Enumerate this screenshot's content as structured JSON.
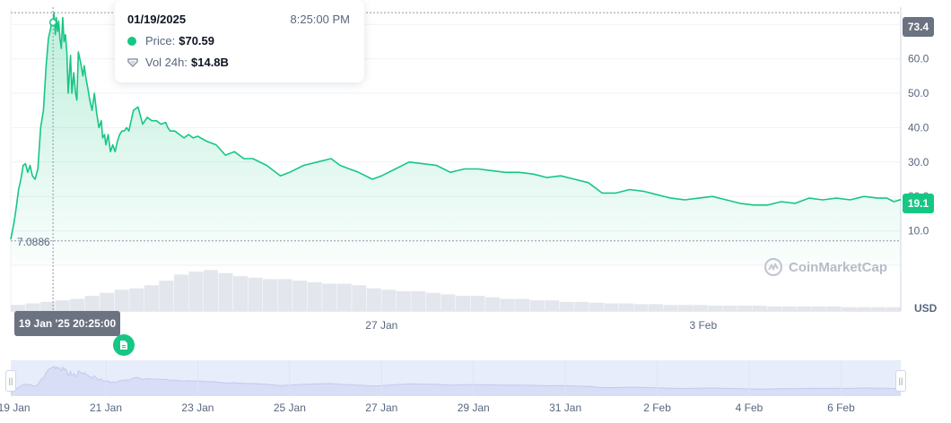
{
  "chart_data": {
    "type": "area",
    "ylim": [
      0,
      75
    ],
    "y_ticks": [
      "10.0",
      "20.0",
      "30.0",
      "40.0",
      "50.0",
      "60.0",
      "70.0"
    ],
    "x_ticks": [
      "27 Jan",
      "3 Feb"
    ],
    "x_ticks_days": [
      27,
      34
    ],
    "x_range_days": [
      18.93,
      38.3
    ],
    "currency": "USD",
    "high_value": "73.4",
    "last_value": "19.1",
    "low_value": "7.0886",
    "high_line_value": 73.4,
    "low_line_value": 7.0886,
    "crosshair_day": 19.85,
    "crosshair_value": 70.59,
    "series": [
      {
        "values_x_days": [
          18.93,
          18.98,
          19.02,
          19.06,
          19.1,
          19.15,
          19.2,
          19.25,
          19.3,
          19.35,
          19.4,
          19.46,
          19.52,
          19.58,
          19.64,
          19.7,
          19.75,
          19.8,
          19.82,
          19.85,
          19.87,
          19.9,
          19.92,
          19.95,
          19.97,
          20.0,
          20.03,
          20.06,
          20.09,
          20.12,
          20.15,
          20.18,
          20.2,
          20.23,
          20.26,
          20.3,
          20.34,
          20.37,
          20.4,
          20.45,
          20.5,
          20.53,
          20.57,
          20.6,
          20.65,
          20.7,
          20.75,
          20.8,
          20.85,
          20.9,
          20.93,
          20.97,
          21.0,
          21.05,
          21.1,
          21.15,
          21.2,
          21.25,
          21.3,
          21.35,
          21.4,
          21.45,
          21.5,
          21.6,
          21.7,
          21.8,
          21.9,
          22.0,
          22.1,
          22.2,
          22.3,
          22.35,
          22.4,
          22.5,
          22.6,
          22.7,
          22.8,
          22.9,
          23.0,
          23.2,
          23.4,
          23.6,
          23.8,
          24.0,
          24.2,
          24.5,
          24.8,
          25.0,
          25.3,
          25.6,
          25.9,
          26.1,
          26.3,
          26.5,
          26.8,
          27.0,
          27.3,
          27.6,
          27.9,
          28.2,
          28.5,
          28.8,
          29.1,
          29.4,
          29.7,
          30.0,
          30.3,
          30.6,
          30.9,
          31.2,
          31.5,
          31.8,
          32.1,
          32.4,
          32.7,
          33.0,
          33.3,
          33.6,
          33.9,
          34.2,
          34.5,
          34.8,
          35.1,
          35.4,
          35.7,
          36.0,
          36.3,
          36.6,
          36.9,
          37.2,
          37.5,
          37.8,
          38.0,
          38.15,
          38.3
        ],
        "values": [
          7.5,
          11.0,
          14.0,
          18.0,
          22.0,
          25.0,
          29.0,
          29.5,
          27.0,
          29.0,
          26.0,
          25.0,
          28.0,
          40.0,
          45.0,
          58.0,
          66.0,
          69.0,
          71.0,
          70.59,
          73.4,
          67.0,
          72.0,
          68.0,
          71.0,
          66.0,
          63.0,
          72.0,
          65.0,
          67.0,
          62.0,
          50.0,
          54.0,
          61.0,
          50.0,
          56.0,
          50.0,
          48.0,
          62.0,
          59.0,
          55.0,
          58.0,
          54.0,
          52.0,
          48.0,
          45.0,
          50.0,
          44.0,
          40.0,
          42.0,
          37.0,
          38.0,
          35.0,
          38.0,
          33.0,
          35.0,
          33.0,
          36.0,
          38.0,
          39.0,
          39.0,
          40.0,
          39.0,
          45.0,
          46.0,
          41.0,
          43.0,
          42.0,
          42.0,
          41.0,
          41.5,
          40.0,
          39.0,
          39.0,
          38.0,
          37.0,
          38.0,
          37.0,
          37.5,
          36.0,
          35.0,
          32.0,
          33.0,
          31.0,
          31.0,
          29.0,
          26.0,
          27.0,
          29.0,
          30.0,
          31.0,
          29.0,
          28.0,
          27.0,
          25.0,
          26.0,
          28.0,
          30.0,
          29.5,
          29.0,
          27.0,
          28.0,
          28.0,
          27.5,
          27.0,
          27.0,
          26.5,
          25.5,
          26.0,
          25.0,
          24.0,
          21.0,
          21.0,
          22.0,
          21.5,
          20.5,
          19.5,
          19.0,
          19.5,
          20.0,
          19.0,
          18.0,
          17.5,
          17.5,
          18.5,
          18.0,
          19.5,
          19.0,
          19.5,
          19.0,
          20.0,
          19.5,
          19.5,
          18.5,
          19.1
        ],
        "volume_relative": [
          0.08,
          0.1,
          0.12,
          0.14,
          0.16,
          0.2,
          0.24,
          0.28,
          0.3,
          0.34,
          0.4,
          0.48,
          0.52,
          0.54,
          0.5,
          0.46,
          0.44,
          0.42,
          0.42,
          0.4,
          0.38,
          0.36,
          0.36,
          0.34,
          0.3,
          0.28,
          0.26,
          0.26,
          0.24,
          0.22,
          0.2,
          0.2,
          0.18,
          0.16,
          0.16,
          0.14,
          0.14,
          0.12,
          0.12,
          0.11,
          0.1,
          0.1,
          0.09,
          0.09,
          0.08,
          0.08,
          0.08,
          0.07,
          0.07,
          0.07,
          0.07,
          0.06,
          0.06,
          0.06,
          0.06,
          0.06,
          0.05,
          0.05,
          0.05,
          0.05
        ]
      }
    ],
    "navigator": {
      "x_ticks": [
        "19 Jan",
        "21 Jan",
        "23 Jan",
        "25 Jan",
        "27 Jan",
        "29 Jan",
        "31 Jan",
        "2 Feb",
        "4 Feb",
        "6 Feb"
      ],
      "x_ticks_days": [
        19,
        21,
        23,
        25,
        27,
        29,
        31,
        33,
        35,
        37
      ]
    }
  },
  "tooltip": {
    "date": "01/19/2025",
    "time": "8:25:00 PM",
    "price_label": "Price:",
    "price_value": "$70.59",
    "vol_label": "Vol 24h:",
    "vol_value": "$14.8B"
  },
  "crosshair_time_label": "19 Jan '25 20:25:00",
  "watermark": "CoinMarketCap",
  "handle_glyph": "||",
  "colors": {
    "line": "#16c784",
    "area_top": "#16c784",
    "volume": "#e3e6ec",
    "grid": "#eff2f5",
    "axis_text": "#58667e",
    "navigator_fill": "#e8edfb"
  },
  "icons": {
    "note": "document-icon",
    "brand": "coinmarketcap-logo-icon",
    "volume": "volume-shield-icon"
  }
}
